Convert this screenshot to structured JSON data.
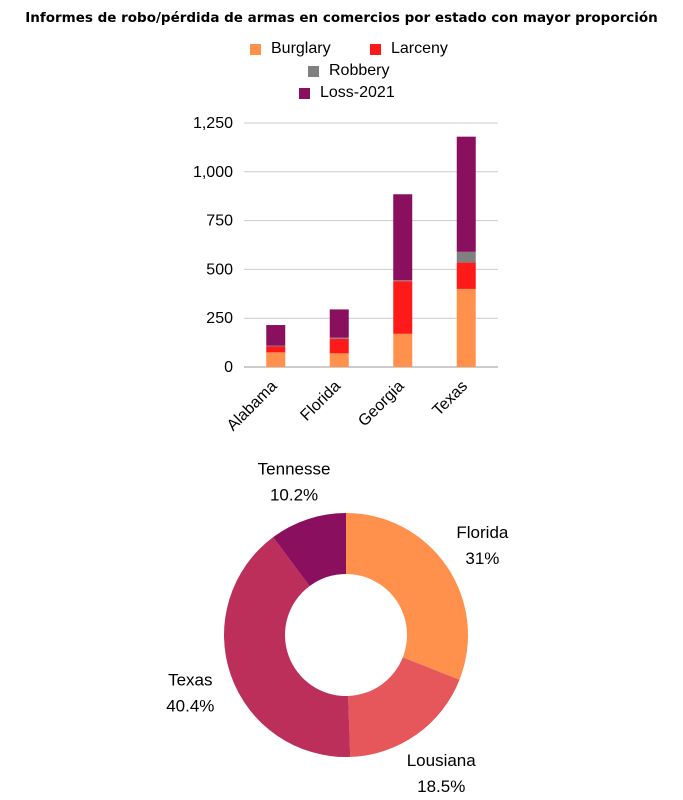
{
  "title": "Informes de robo/pérdida de armas en comercios por estado con mayor proporción",
  "chart_data": [
    {
      "type": "bar",
      "stacked": true,
      "categories": [
        "Alabama",
        "Florida",
        "Georgia",
        "Texas"
      ],
      "series": [
        {
          "name": "Burglary",
          "color": "#FF914D",
          "values": [
            75,
            70,
            170,
            400
          ]
        },
        {
          "name": "Larceny",
          "color": "#FF1A1A",
          "values": [
            30,
            75,
            270,
            135
          ]
        },
        {
          "name": "Robbery",
          "color": "#808080",
          "values": [
            5,
            5,
            5,
            55
          ]
        },
        {
          "name": "Loss-2021",
          "color": "#8B0F5F",
          "values": [
            105,
            145,
            440,
            590
          ]
        }
      ],
      "ylim": [
        0,
        1250
      ],
      "yticks": [
        "0",
        "250",
        "500",
        "750",
        "1,000",
        "1,250"
      ],
      "grid": true,
      "legend": "top"
    },
    {
      "type": "pie",
      "donut": true,
      "slices": [
        {
          "label": "Florida",
          "pct_label": "31%",
          "value": 31,
          "color": "#FF914D"
        },
        {
          "label": "Lousiana",
          "pct_label": "18.5%",
          "value": 18.5,
          "color": "#E5575A"
        },
        {
          "label": "Texas",
          "pct_label": "40.4%",
          "value": 40.4,
          "color": "#BC2F5A"
        },
        {
          "label": "Tennesse",
          "pct_label": "10.2%",
          "value": 10.2,
          "color": "#8B0F5F"
        }
      ]
    }
  ]
}
